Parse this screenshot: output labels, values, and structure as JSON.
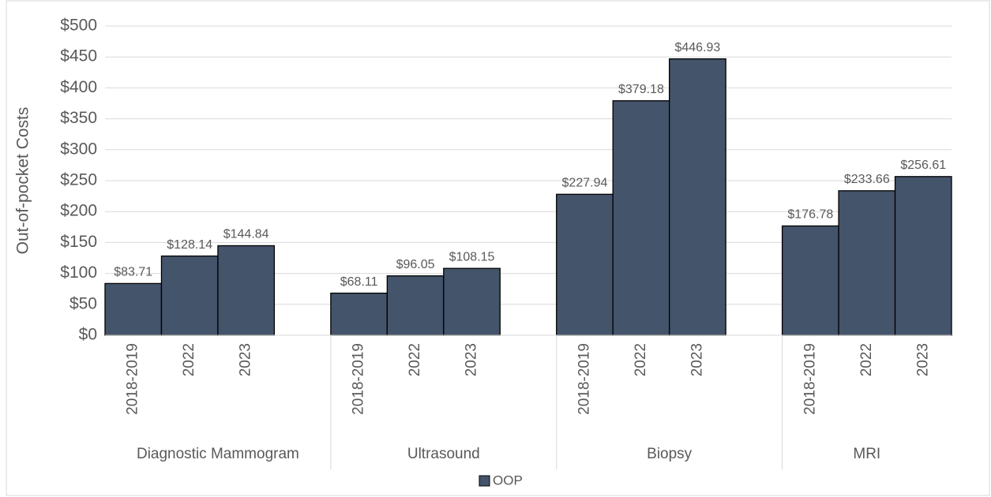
{
  "chart_data": {
    "type": "grouped-bar",
    "y_label": "Out-of-pocket Costs",
    "series_name": "OOP",
    "color": "#44546a",
    "groups": [
      {
        "name": "Diagnostic Mammogram",
        "categories": [
          "2018-2019",
          "2022",
          "2023"
        ],
        "values": [
          83.71,
          128.14,
          144.84
        ],
        "value_labels": [
          "$83.71",
          "$128.14",
          "$144.84"
        ]
      },
      {
        "name": "Ultrasound",
        "categories": [
          "2018-2019",
          "2022",
          "2023"
        ],
        "values": [
          68.11,
          96.05,
          108.15
        ],
        "value_labels": [
          "$68.11",
          "$96.05",
          "$108.15"
        ]
      },
      {
        "name": "Biopsy",
        "categories": [
          "2018-2019",
          "2022",
          "2023"
        ],
        "values": [
          227.94,
          379.18,
          446.93
        ],
        "value_labels": [
          "$227.94",
          "$379.18",
          "$446.93"
        ]
      },
      {
        "name": "MRI",
        "categories": [
          "2018-2019",
          "2022",
          "2023"
        ],
        "values": [
          176.78,
          233.66,
          256.61
        ],
        "value_labels": [
          "$176.78",
          "$233.66",
          "$256.61"
        ]
      }
    ],
    "ylim": [
      0,
      500
    ],
    "yticks": [
      {
        "value": 0,
        "label": "$0"
      },
      {
        "value": 50,
        "label": "$50"
      },
      {
        "value": 100,
        "label": "$100"
      },
      {
        "value": 150,
        "label": "$150"
      },
      {
        "value": 200,
        "label": "$200"
      },
      {
        "value": 250,
        "label": "$250"
      },
      {
        "value": 300,
        "label": "$300"
      },
      {
        "value": 350,
        "label": "$350"
      },
      {
        "value": 400,
        "label": "$400"
      },
      {
        "value": 450,
        "label": "$450"
      },
      {
        "value": 500,
        "label": "$500"
      }
    ],
    "grid": true,
    "legend": "bottom"
  }
}
